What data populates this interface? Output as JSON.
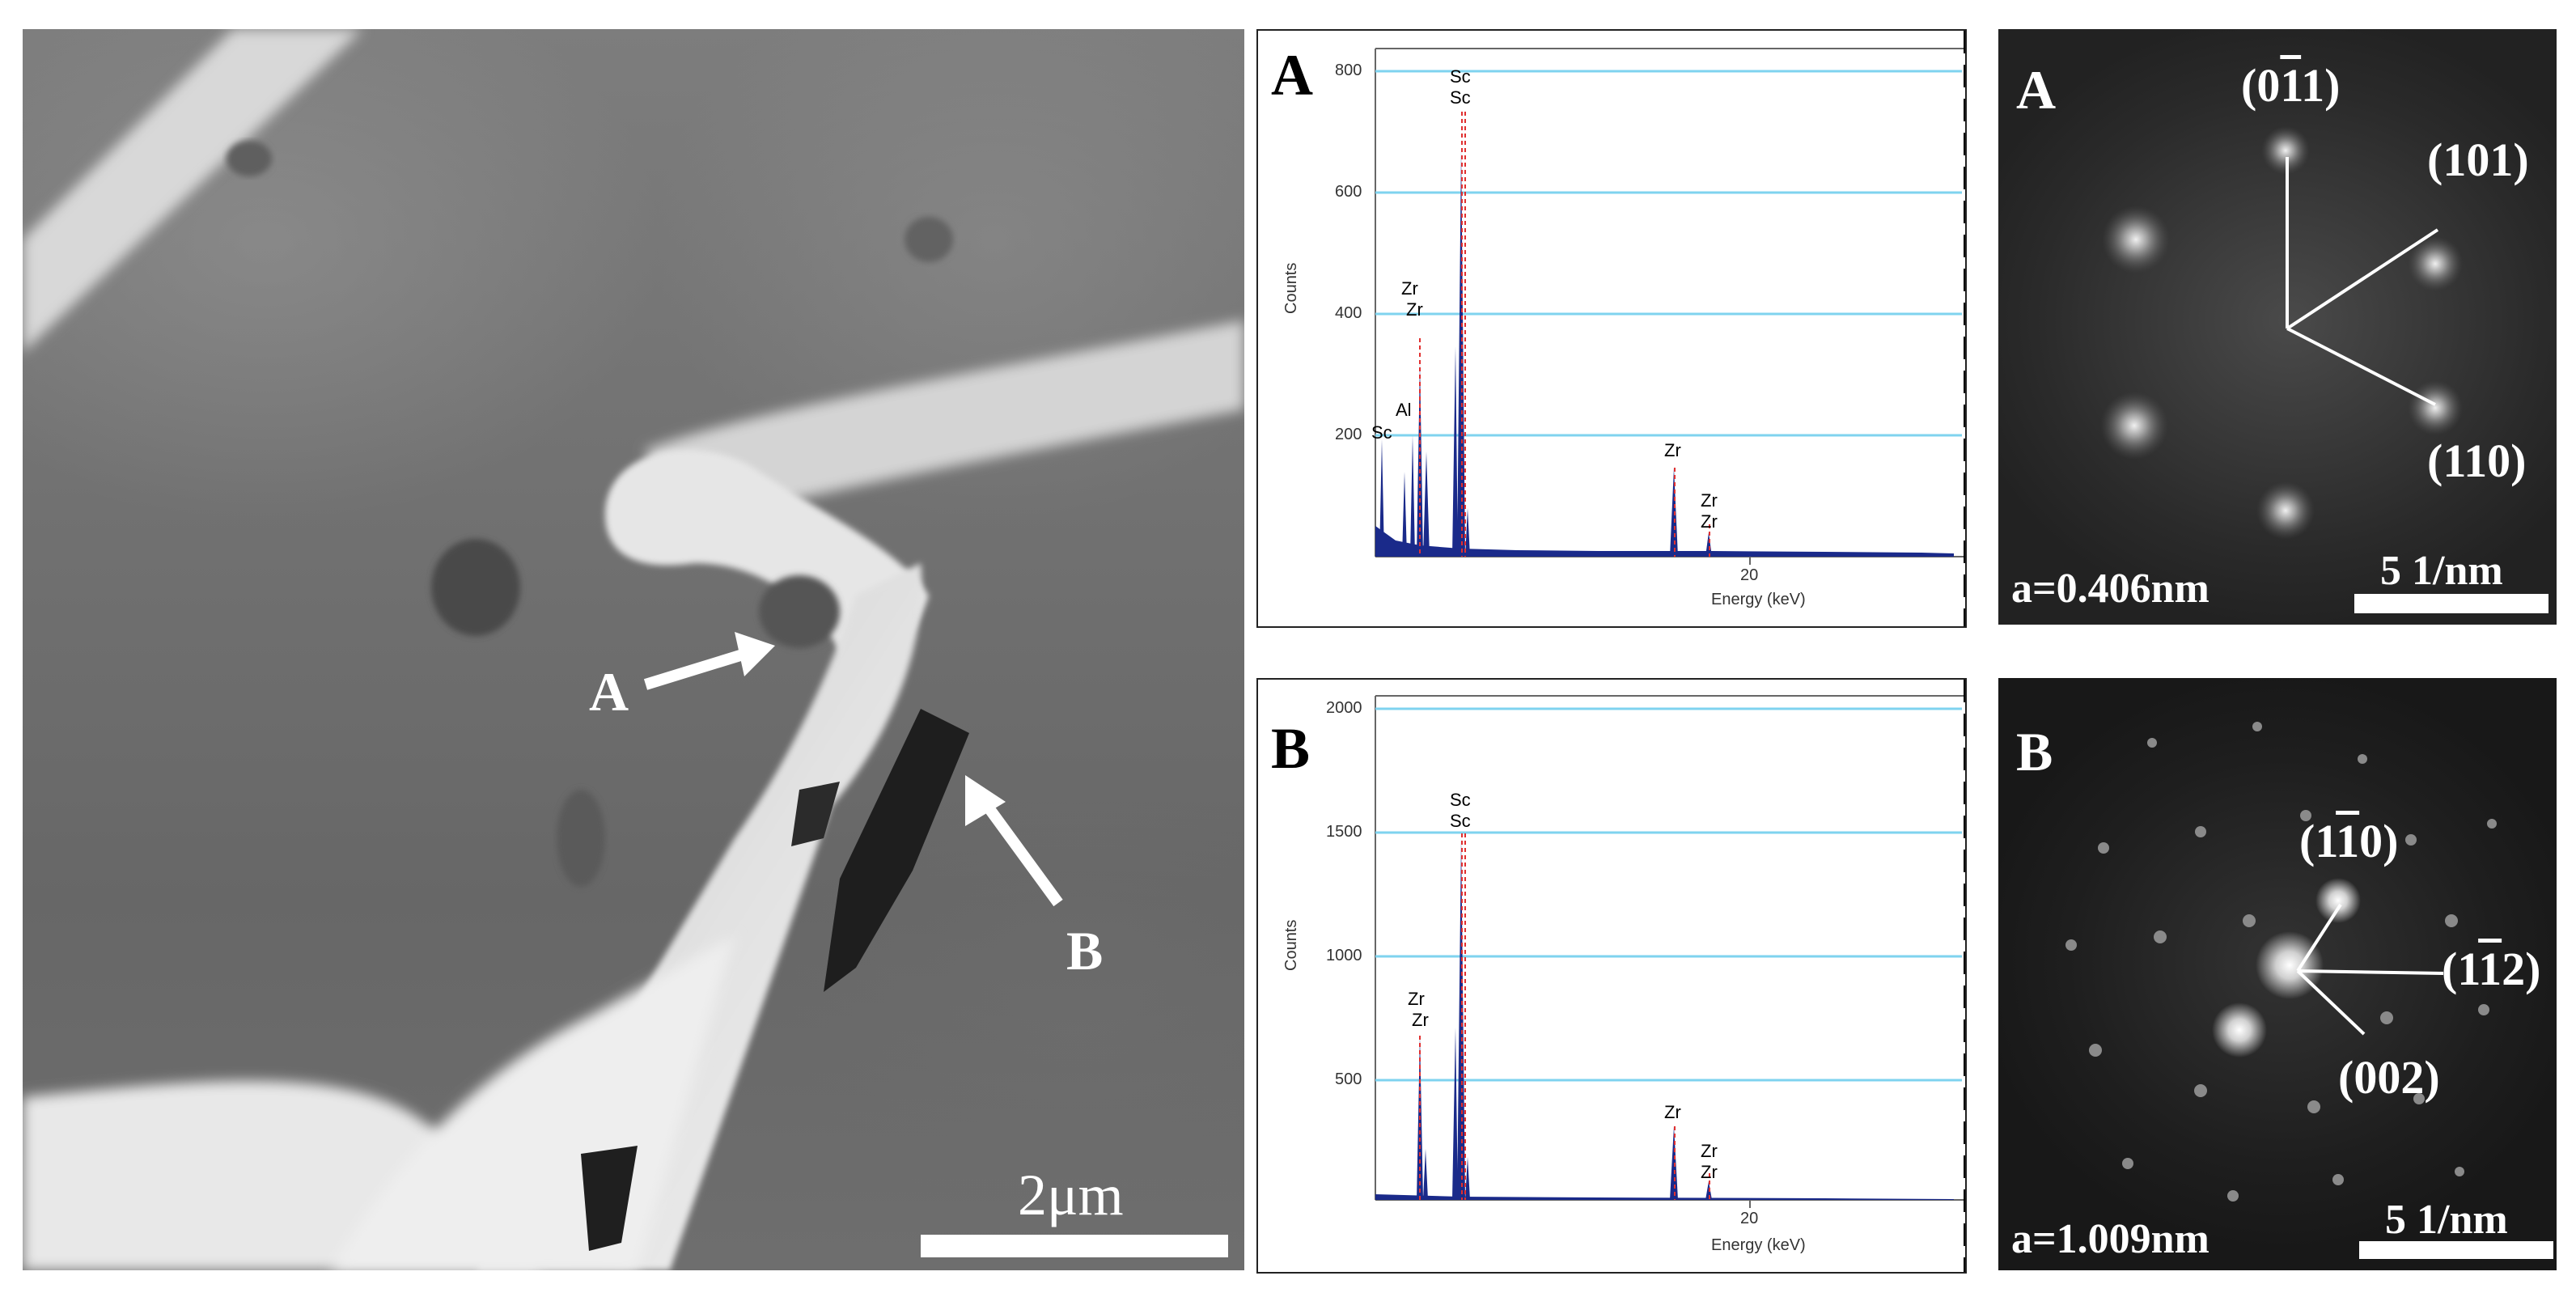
{
  "sem": {
    "label_a": "A",
    "label_b": "B",
    "scale": "2μm"
  },
  "eds_a": {
    "letter": "A",
    "ylabel": "Counts",
    "xlabel": "Energy (keV)",
    "y_ticks": [
      "800",
      "600",
      "400",
      "200"
    ],
    "x_tick": "20",
    "peaks": [
      "Sc",
      "Sc",
      "Zr",
      "Zr",
      "Al",
      "Sc",
      "Zr",
      "Zr",
      "Zr"
    ]
  },
  "eds_b": {
    "letter": "B",
    "ylabel": "Counts",
    "xlabel": "Energy (keV)",
    "y_ticks": [
      "2000",
      "1500",
      "1000",
      "500"
    ],
    "x_tick": "20",
    "peaks": [
      "Sc",
      "Sc",
      "Zr",
      "Zr",
      "Zr",
      "Zr",
      "Zr"
    ]
  },
  "saed_a": {
    "letter": "A",
    "idx1_a": "(0",
    "idx1_b": "1",
    "idx1_c": "1)",
    "idx2": "(101)",
    "idx3": "(110)",
    "lattice": "a=0.406nm",
    "scale": "5 1/nm"
  },
  "saed_b": {
    "letter": "B",
    "idx1_a": "(1",
    "idx1_b": "1",
    "idx1_c": "0)",
    "idx2_a": "(1",
    "idx2_b": "1",
    "idx2_c": "2)",
    "idx3": "(002)",
    "lattice": "a=1.009nm",
    "scale": "5 1/nm"
  }
}
